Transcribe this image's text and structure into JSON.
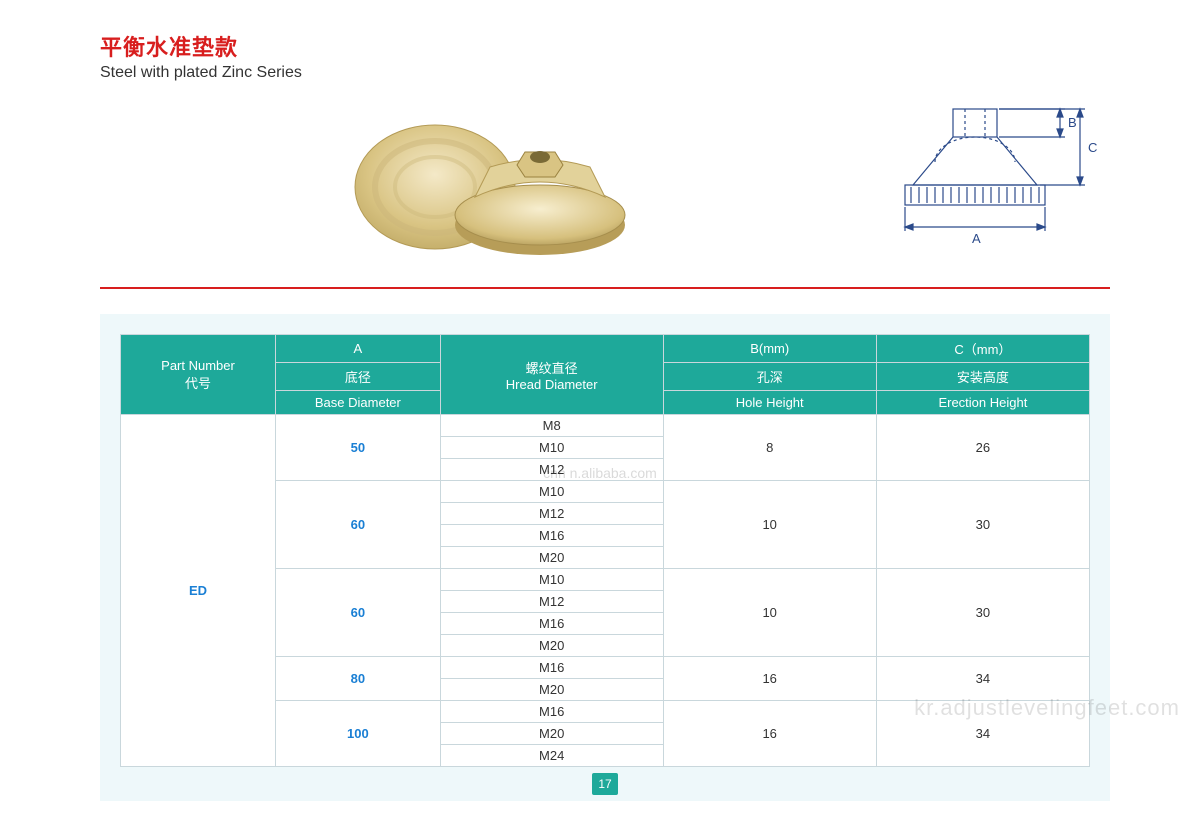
{
  "title": {
    "cn": "平衡水准垫款",
    "en": "Steel with plated Zinc Series"
  },
  "watermarks": {
    "center": "cnn   n.alibaba.com",
    "bottom": "kr.adjustlevelingfeet.com"
  },
  "page_number": "17",
  "colors": {
    "red": "#d81e1e",
    "teal": "#1ea99a",
    "table_bg": "#eef8fa",
    "border": "#c9d7dc",
    "blue_text": "#1a7fd4",
    "diagram_stroke": "#2b4a8a"
  },
  "diagram": {
    "labels": {
      "A": "A",
      "B": "B",
      "C": "C"
    }
  },
  "table": {
    "headers": {
      "part_number": {
        "en": "Part Number",
        "cn": "代号"
      },
      "A": {
        "top": "A",
        "cn": "底径",
        "en": "Base Diameter"
      },
      "hread": {
        "cn": "螺纹直径",
        "en": "Hread Diameter"
      },
      "B": {
        "top": "B(mm)",
        "cn": "孔深",
        "en": "Hole Height"
      },
      "C": {
        "top": "C（mm）",
        "cn": "安装高度",
        "en": "Erection Height"
      }
    },
    "partnum": "ED",
    "groups": [
      {
        "A": "50",
        "threads": [
          "M8",
          "M10",
          "M12"
        ],
        "B": "8",
        "C": "26"
      },
      {
        "A": "60",
        "threads": [
          "M10",
          "M12",
          "M16",
          "M20"
        ],
        "B": "10",
        "C": "30"
      },
      {
        "A": "60",
        "threads": [
          "M10",
          "M12",
          "M16",
          "M20"
        ],
        "B": "10",
        "C": "30"
      },
      {
        "A": "80",
        "threads": [
          "M16",
          "M20"
        ],
        "B": "16",
        "C": "34"
      },
      {
        "A": "100",
        "threads": [
          "M16",
          "M20",
          "M24"
        ],
        "B": "16",
        "C": "34"
      }
    ]
  }
}
